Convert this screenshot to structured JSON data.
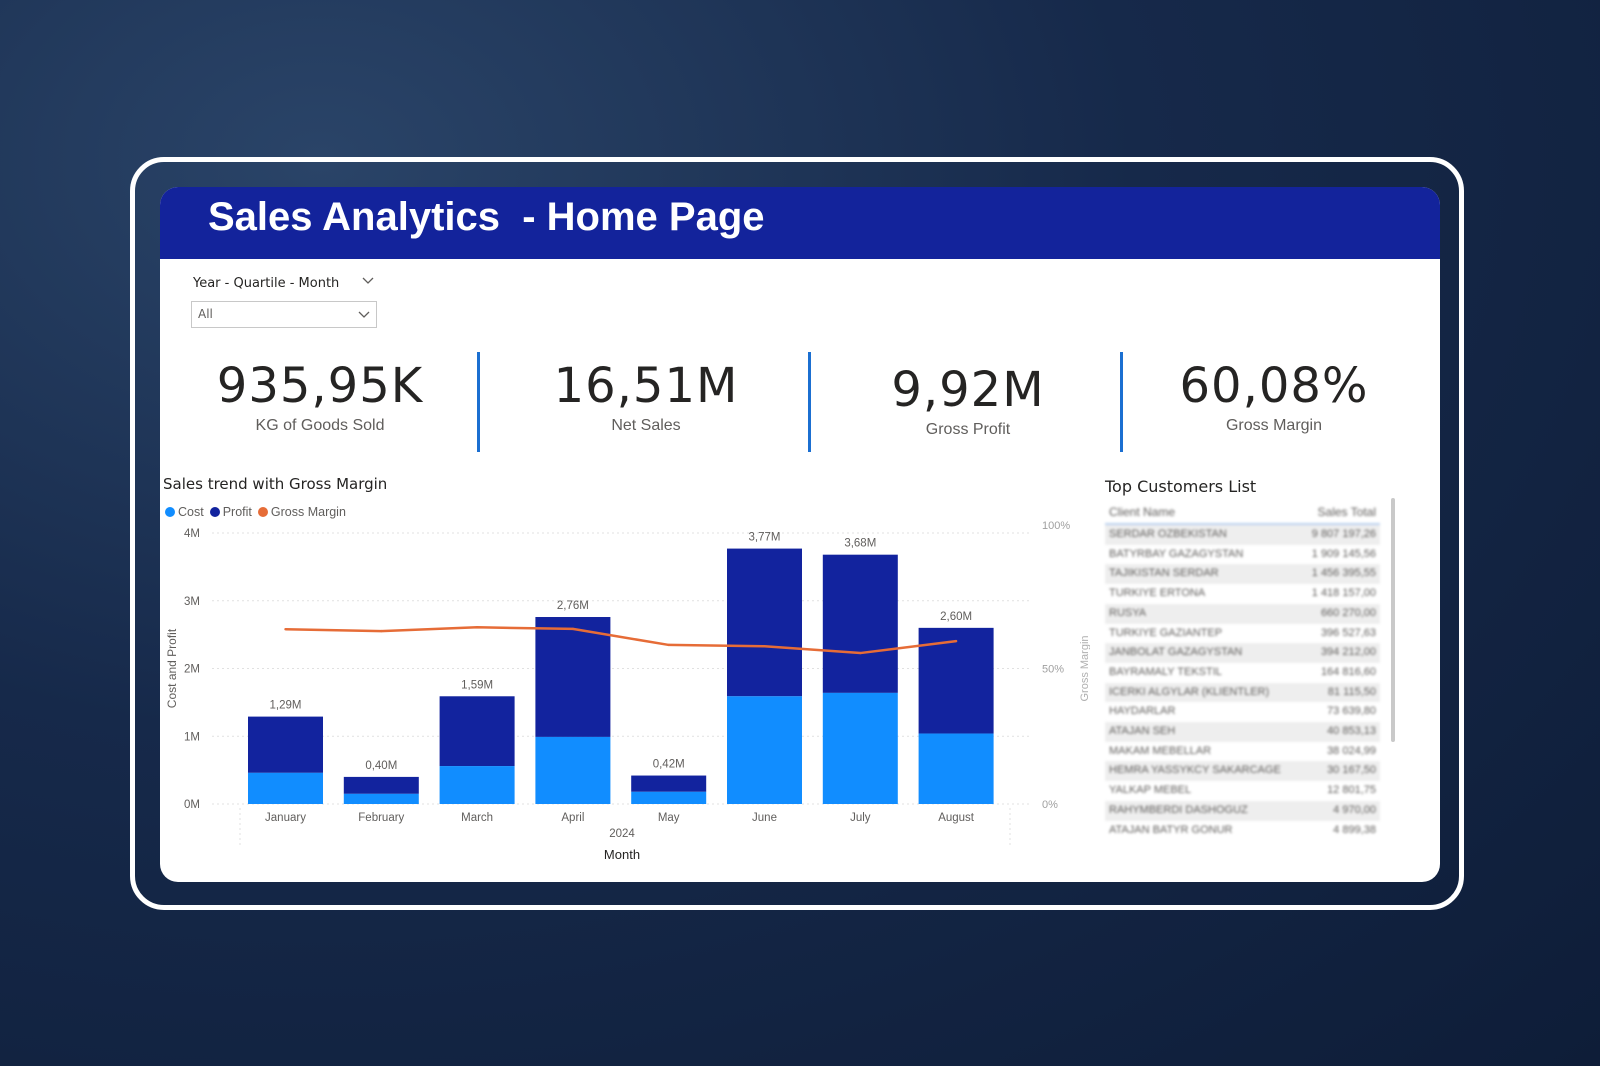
{
  "header": {
    "title": "Sales Analytics  - Home Page"
  },
  "slicer": {
    "label": "Year - Quartile - Month",
    "value": "All"
  },
  "kpis": [
    {
      "value": "935,95K",
      "label": "KG of Goods Sold"
    },
    {
      "value": "16,51M",
      "label": "Net Sales"
    },
    {
      "value": "9,92M",
      "label": "Gross Profit"
    },
    {
      "value": "60,08%",
      "label": "Gross Margin"
    }
  ],
  "chart": {
    "title": "Sales trend with Gross Margin",
    "legend": [
      {
        "name": "Cost",
        "color": "#118dff"
      },
      {
        "name": "Profit",
        "color": "#12239e"
      },
      {
        "name": "Gross Margin",
        "color": "#e66c37"
      }
    ]
  },
  "chart_data": {
    "type": "bar",
    "stacked": true,
    "title": "Sales trend with Gross Margin",
    "categories": [
      "January",
      "February",
      "March",
      "April",
      "May",
      "June",
      "July",
      "August"
    ],
    "year_label": "2024",
    "xlabel": "Month",
    "ylabel": "Cost and Profit",
    "y2label": "Gross Margin",
    "ylim": [
      0,
      4000000
    ],
    "y_ticks": [
      "0M",
      "1M",
      "2M",
      "3M",
      "4M"
    ],
    "y2lim": [
      0,
      100
    ],
    "y2_ticks": [
      "0%",
      "50%",
      "100%"
    ],
    "series": [
      {
        "name": "Cost",
        "values": [
          460000,
          150000,
          560000,
          990000,
          180000,
          1590000,
          1640000,
          1040000
        ]
      },
      {
        "name": "Profit",
        "values": [
          830000,
          250000,
          1030000,
          1770000,
          240000,
          2180000,
          2040000,
          1560000
        ]
      }
    ],
    "totals_labels": [
      "1,29M",
      "0,40M",
      "1,59M",
      "2,76M",
      "0,42M",
      "3,77M",
      "3,68M",
      "2,60M"
    ],
    "line": {
      "name": "Gross Margin",
      "values": [
        64.5,
        63.8,
        65.2,
        64.6,
        58.7,
        58.2,
        55.7,
        60.1
      ]
    },
    "colors": {
      "cost": "#118dff",
      "profit": "#12239e",
      "margin": "#e66c37"
    }
  },
  "customers": {
    "title": "Top Customers List",
    "columns": [
      "Client Name",
      "Sales Total"
    ],
    "rows": [
      [
        "SERDAR OZBEKISTAN",
        "9 807 197,26"
      ],
      [
        "BATYRBAY GAZAGYSTAN",
        "1 909 145,56"
      ],
      [
        "TAJIKISTAN SERDAR",
        "1 456 395,55"
      ],
      [
        "TURKIYE ERTONA",
        "1 418 157,00"
      ],
      [
        "RUSYA",
        "660 270,00"
      ],
      [
        "TURKIYE GAZIANTEP",
        "396 527,63"
      ],
      [
        "JANBOLAT GAZAGYSTAN",
        "394 212,00"
      ],
      [
        "BAYRAMALY TEKSTIL",
        "164 816,60"
      ],
      [
        "ICERKI ALGYLAR (KLIENTLER)",
        "81 115,50"
      ],
      [
        "HAYDARLAR",
        "73 639,80"
      ],
      [
        "ATAJAN SEH",
        "40 853,13"
      ],
      [
        "MAKAM MEBELLAR",
        "38 024,99"
      ],
      [
        "HEMRA YASSYKCY SAKARCAGE",
        "30 167,50"
      ],
      [
        "YALKAP MEBEL",
        "12 801,75"
      ],
      [
        "RAHYMBERDI DASHOGUZ",
        "4 970,00"
      ],
      [
        "ATAJAN BATYR GONUR",
        "4 899,38"
      ]
    ]
  }
}
